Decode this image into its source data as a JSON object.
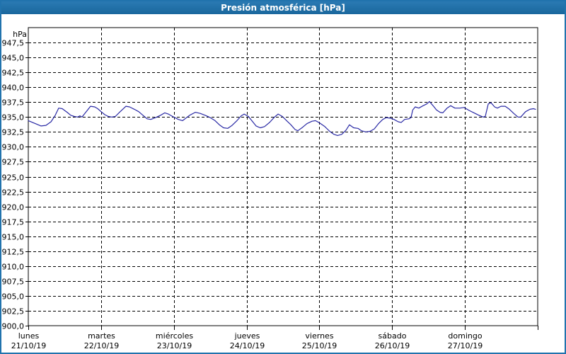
{
  "window": {
    "title": "Presión atmosférica [hPa]",
    "colors": {
      "titlebar_bg": "#1d6fa5",
      "titlebar_text": "#ffffff",
      "window_border": "#2173ad",
      "plot_background": "#ffffff",
      "grid": "#000000",
      "line": "#2a2aa5"
    }
  },
  "chart_data": {
    "type": "line",
    "title": "Presión atmosférica [hPa]",
    "ylabel": "hPa",
    "ylim": [
      900,
      950
    ],
    "ytick_step": 2.5,
    "ytick_labels": [
      "947,5",
      "945,0",
      "942,5",
      "940,0",
      "937,5",
      "935,0",
      "932,5",
      "930,0",
      "927,5",
      "925,0",
      "922,5",
      "920,0",
      "917,5",
      "915,0",
      "912,5",
      "910,0",
      "907,5",
      "905,0",
      "902,5",
      "900,0"
    ],
    "grid": "dashed",
    "legend": "none",
    "xlim_hours": [
      0,
      168
    ],
    "x_days": [
      {
        "name": "lunes",
        "date": "21/10/19"
      },
      {
        "name": "martes",
        "date": "22/10/19"
      },
      {
        "name": "miércoles",
        "date": "23/10/19"
      },
      {
        "name": "jueves",
        "date": "24/10/19"
      },
      {
        "name": "viernes",
        "date": "25/10/19"
      },
      {
        "name": "sábado",
        "date": "26/10/19"
      },
      {
        "name": "domingo",
        "date": "27/10/19"
      }
    ],
    "series": [
      {
        "name": "presión atmosférica",
        "color": "#2a2aa5",
        "points_hour_hpa": [
          [
            0,
            934.4
          ],
          [
            2.3,
            933.9
          ],
          [
            4.2,
            933.5
          ],
          [
            5.8,
            933.6
          ],
          [
            7.5,
            934.2
          ],
          [
            8.9,
            935.3
          ],
          [
            10,
            936.5
          ],
          [
            11.2,
            936.4
          ],
          [
            12.8,
            935.8
          ],
          [
            14,
            935.3
          ],
          [
            15.2,
            935.1
          ],
          [
            16.3,
            935.0
          ],
          [
            17,
            935.2
          ],
          [
            17.7,
            935.0
          ],
          [
            19.1,
            935.9
          ],
          [
            20.5,
            936.8
          ],
          [
            21.9,
            936.7
          ],
          [
            22.9,
            936.4
          ],
          [
            24,
            935.9
          ],
          [
            25.2,
            935.4
          ],
          [
            26.4,
            935.1
          ],
          [
            27.5,
            935.0
          ],
          [
            28.7,
            935.1
          ],
          [
            30.3,
            935.9
          ],
          [
            32.2,
            936.8
          ],
          [
            33.4,
            936.7
          ],
          [
            35,
            936.3
          ],
          [
            36.4,
            935.9
          ],
          [
            37.8,
            935.3
          ],
          [
            39.2,
            934.7
          ],
          [
            40.4,
            934.6
          ],
          [
            42,
            934.9
          ],
          [
            43.6,
            935.3
          ],
          [
            45,
            935.7
          ],
          [
            46.2,
            935.5
          ],
          [
            47.6,
            935.1
          ],
          [
            49.5,
            934.6
          ],
          [
            50.9,
            934.4
          ],
          [
            53.2,
            935.3
          ],
          [
            55.1,
            935.8
          ],
          [
            56.7,
            935.6
          ],
          [
            58.3,
            935.3
          ],
          [
            60,
            934.9
          ],
          [
            61.6,
            934.4
          ],
          [
            63,
            933.7
          ],
          [
            64.4,
            933.2
          ],
          [
            65.8,
            933.1
          ],
          [
            67.2,
            933.6
          ],
          [
            68.8,
            934.4
          ],
          [
            70.2,
            935.2
          ],
          [
            71.2,
            935.5
          ],
          [
            72.6,
            935.1
          ],
          [
            73.7,
            934.4
          ],
          [
            75.1,
            933.5
          ],
          [
            76.5,
            933.2
          ],
          [
            77.9,
            933.4
          ],
          [
            79.6,
            934.1
          ],
          [
            81.2,
            935.0
          ],
          [
            82.4,
            935.5
          ],
          [
            83.8,
            935.1
          ],
          [
            85.2,
            934.4
          ],
          [
            86.6,
            933.7
          ],
          [
            88,
            932.9
          ],
          [
            88.9,
            932.7
          ],
          [
            90.5,
            933.3
          ],
          [
            91.9,
            933.9
          ],
          [
            93.6,
            934.3
          ],
          [
            94.7,
            934.4
          ],
          [
            96.1,
            934.0
          ],
          [
            97.8,
            933.4
          ],
          [
            99.4,
            932.6
          ],
          [
            100.8,
            932.1
          ],
          [
            102,
            931.9
          ],
          [
            103.4,
            932.1
          ],
          [
            104.8,
            932.8
          ],
          [
            105.9,
            933.7
          ],
          [
            107.3,
            933.2
          ],
          [
            108.7,
            933.1
          ],
          [
            109.9,
            932.7
          ],
          [
            111.3,
            932.5
          ],
          [
            112.7,
            932.6
          ],
          [
            114.1,
            933.0
          ],
          [
            115.5,
            933.9
          ],
          [
            116.9,
            934.6
          ],
          [
            118.1,
            934.9
          ],
          [
            119.5,
            934.8
          ],
          [
            120.6,
            934.6
          ],
          [
            122,
            934.2
          ],
          [
            123,
            934.1
          ],
          [
            124.1,
            934.6
          ],
          [
            125.5,
            934.7
          ],
          [
            126.2,
            934.9
          ],
          [
            126.8,
            936.2
          ],
          [
            127.6,
            936.7
          ],
          [
            128.8,
            936.5
          ],
          [
            130.2,
            936.9
          ],
          [
            131.4,
            937.2
          ],
          [
            132.3,
            937.6
          ],
          [
            133.5,
            936.9
          ],
          [
            134.6,
            936.2
          ],
          [
            135.8,
            935.8
          ],
          [
            136.7,
            935.7
          ],
          [
            138.1,
            936.5
          ],
          [
            139.3,
            936.9
          ],
          [
            140.7,
            936.5
          ],
          [
            142.3,
            936.5
          ],
          [
            143.7,
            936.6
          ],
          [
            145.4,
            936.1
          ],
          [
            147,
            935.7
          ],
          [
            148.6,
            935.3
          ],
          [
            150,
            935.0
          ],
          [
            150.7,
            935.1
          ],
          [
            151.7,
            937.2
          ],
          [
            152.6,
            937.4
          ],
          [
            153.8,
            936.7
          ],
          [
            154.7,
            936.5
          ],
          [
            155.9,
            936.8
          ],
          [
            157.3,
            936.8
          ],
          [
            158.7,
            936.3
          ],
          [
            160.1,
            935.6
          ],
          [
            161.5,
            935.0
          ],
          [
            162.4,
            935.0
          ],
          [
            164,
            935.9
          ],
          [
            165.4,
            936.3
          ],
          [
            166.6,
            936.4
          ],
          [
            167.3,
            936.3
          ]
        ]
      }
    ]
  }
}
